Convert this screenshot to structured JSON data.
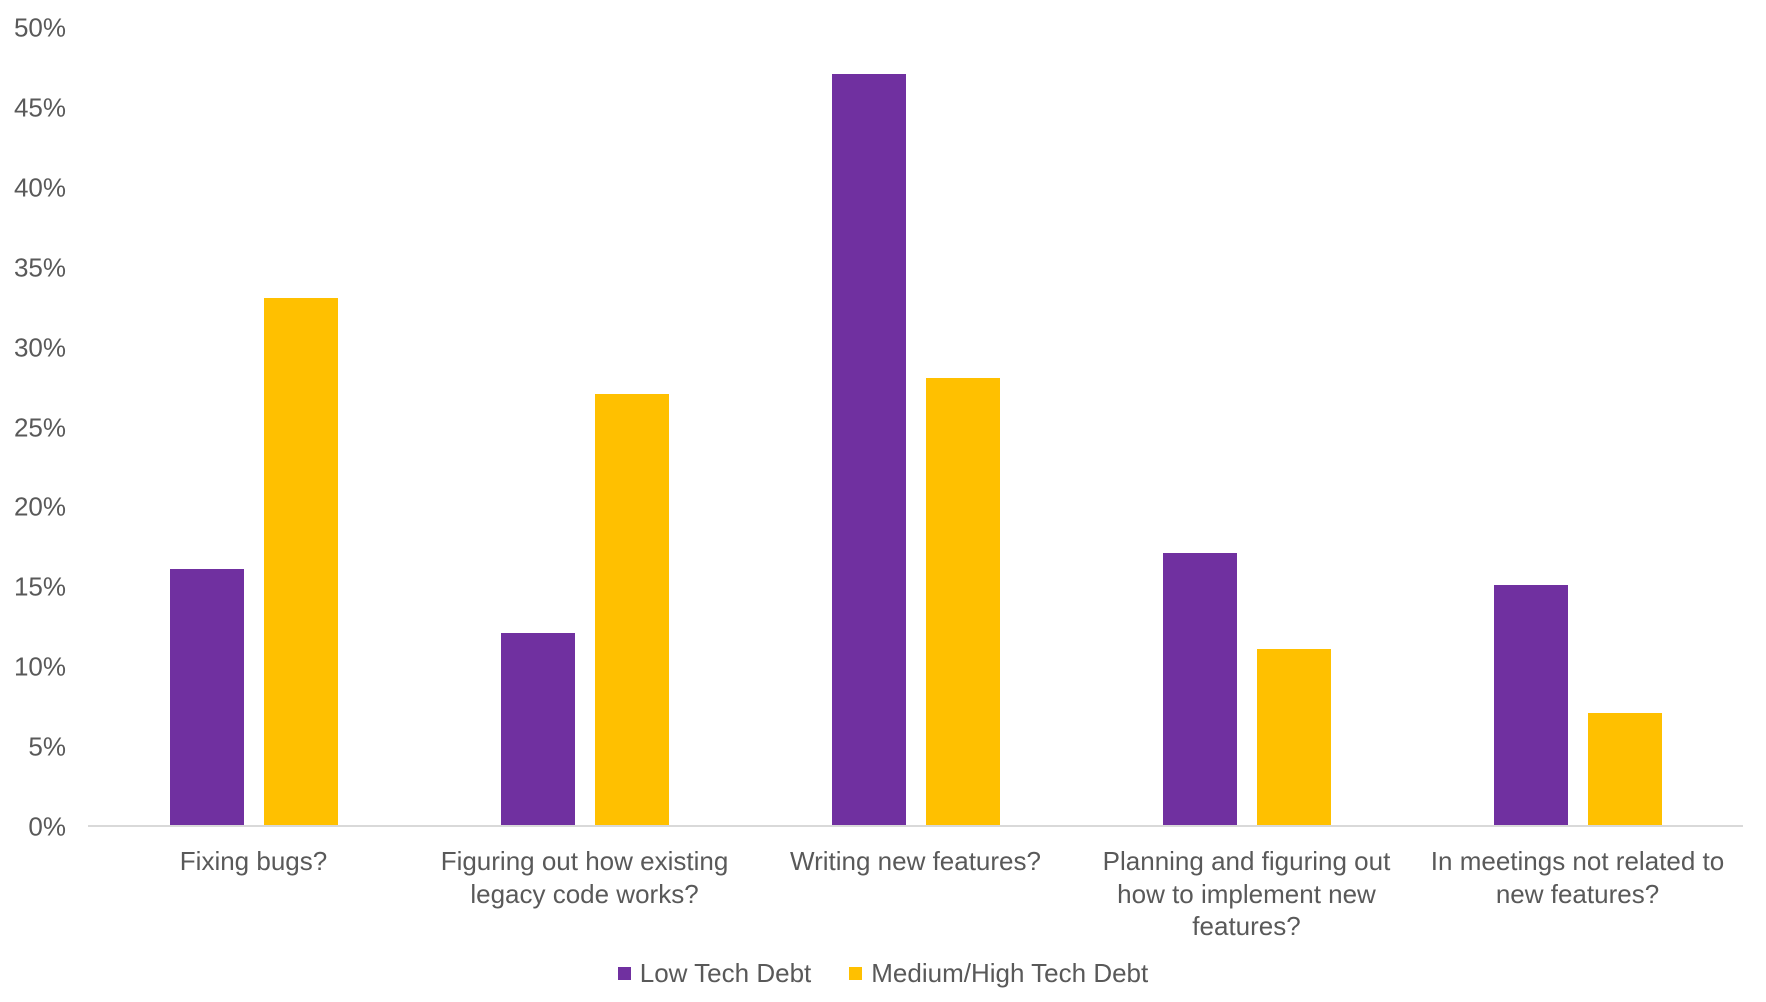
{
  "chart_data": {
    "type": "bar",
    "title": "",
    "xlabel": "",
    "ylabel": "",
    "categories": [
      "Fixing bugs?",
      "Figuring out how existing legacy code works?",
      "Writing new features?",
      "Planning and figuring out how to implement new features?",
      "In meetings not related to new features?"
    ],
    "series": [
      {
        "name": "Low Tech Debt",
        "color": "#7030A0",
        "values": [
          16,
          12,
          47,
          17,
          15
        ]
      },
      {
        "name": "Medium/High Tech Debt",
        "color": "#FFC000",
        "values": [
          33,
          27,
          28,
          11,
          7
        ]
      }
    ],
    "ylim": [
      0,
      50
    ],
    "ytick_step": 5,
    "ytick_labels": [
      "0%",
      "5%",
      "10%",
      "15%",
      "20%",
      "25%",
      "30%",
      "35%",
      "40%",
      "45%",
      "50%"
    ],
    "grid": false,
    "legend_position": "bottom"
  },
  "colors": {
    "background": "#FFFFFF",
    "axis_line": "#D9D9D9",
    "text": "#595959"
  }
}
